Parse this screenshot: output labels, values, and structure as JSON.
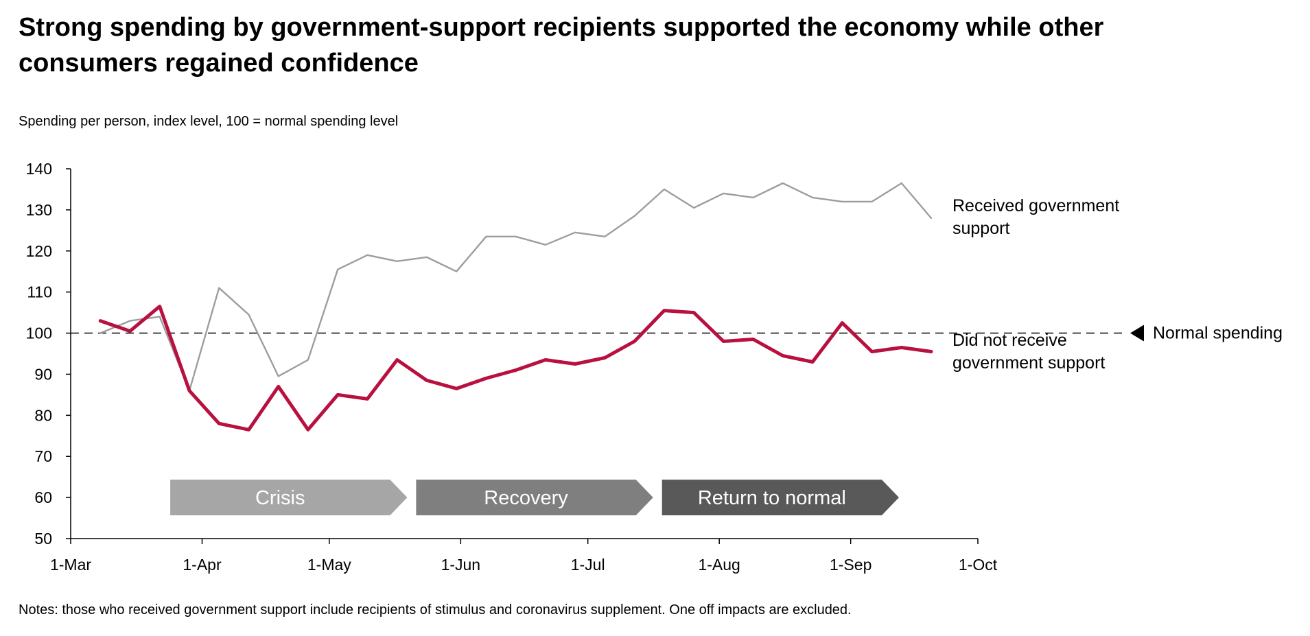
{
  "title": "Strong spending by government-support recipients supported the economy while other consumers regained confidence",
  "subtitle": "Spending per person, index level, 100 = normal spending level",
  "notes": "Notes: those who received government support include recipients of stimulus and coronavirus supplement. One off impacts are excluded.",
  "chart_data": {
    "type": "line",
    "title": "Strong spending by government-support recipients supported the economy while other consumers regained confidence",
    "ylabel": "Spending per person, index level, 100 = normal spending level",
    "xlabel": "",
    "ylim": [
      50,
      140
    ],
    "yticks": [
      50,
      60,
      70,
      80,
      90,
      100,
      110,
      120,
      130,
      140
    ],
    "xlim": [
      "1-Mar",
      "1-Oct"
    ],
    "xticks": [
      "1-Mar",
      "1-Apr",
      "1-May",
      "1-Jun",
      "1-Jul",
      "1-Aug",
      "1-Sep",
      "1-Oct"
    ],
    "grid": false,
    "x": [
      "8-Mar",
      "15-Mar",
      "22-Mar",
      "29-Mar",
      "5-Apr",
      "12-Apr",
      "19-Apr",
      "26-Apr",
      "3-May",
      "10-May",
      "17-May",
      "24-May",
      "31-May",
      "7-Jun",
      "14-Jun",
      "21-Jun",
      "28-Jun",
      "5-Jul",
      "12-Jul",
      "19-Jul",
      "26-Jul",
      "2-Aug",
      "9-Aug",
      "16-Aug",
      "23-Aug",
      "30-Aug",
      "6-Sep",
      "13-Sep",
      "20-Sep"
    ],
    "series": [
      {
        "name": "Received government support",
        "color": "#9d9d9d",
        "values": [
          100,
          103,
          104,
          86,
          111,
          104.5,
          89.5,
          93.5,
          115.5,
          119,
          117.5,
          118.5,
          115,
          123.5,
          123.5,
          121.5,
          124.5,
          123.5,
          128.5,
          135,
          130.5,
          134,
          133,
          136.5,
          133,
          132,
          132,
          136.5,
          128
        ]
      },
      {
        "name": "Did not receive government support",
        "color": "#b8103f",
        "values": [
          103,
          100.5,
          106.5,
          86,
          78,
          76.5,
          87,
          76.5,
          85,
          84,
          93.5,
          88.5,
          86.5,
          89,
          91,
          93.5,
          92.5,
          94,
          98,
          105.5,
          105,
          98,
          98.5,
          94.5,
          93,
          102.5,
          95.5,
          96.5,
          95.5
        ]
      }
    ],
    "reference_line": {
      "value": 100,
      "label": "Normal spending",
      "style": "dashed"
    },
    "phases": [
      {
        "label": "Crisis",
        "color": "#a6a6a6",
        "start": "24-Mar",
        "end": "21-May"
      },
      {
        "label": "Recovery",
        "color": "#7f7f7f",
        "start": "21-May",
        "end": "18-Jul"
      },
      {
        "label": "Return to normal",
        "color": "#595959",
        "start": "18-Jul",
        "end": "14-Sep"
      }
    ]
  }
}
